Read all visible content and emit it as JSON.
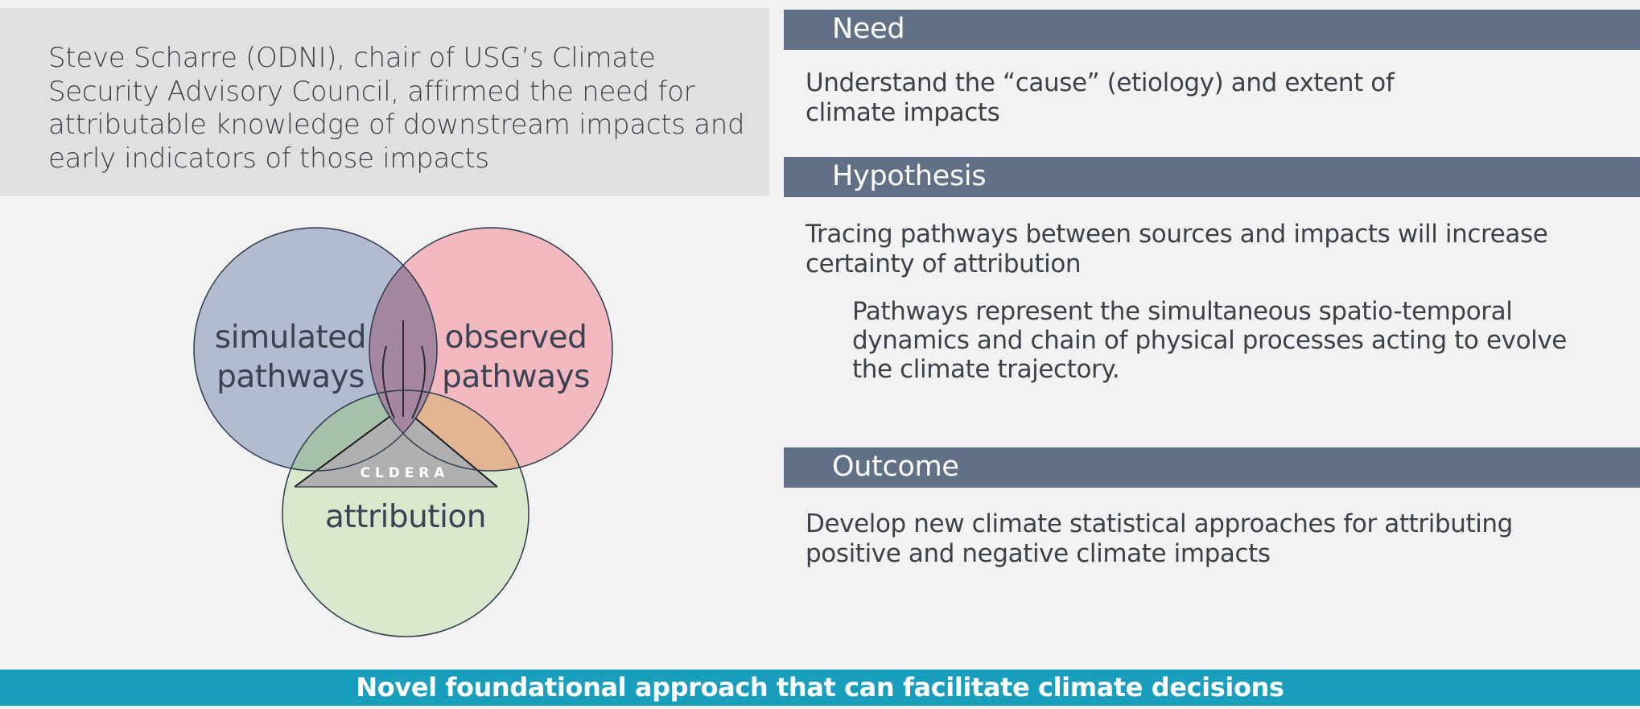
{
  "quote": {
    "text": "Steve Scharre (ODNI), chair of USG’s Climate Security Advisory Council, affirmed the need for attributable knowledge of downstream impacts and early indicators of those impacts"
  },
  "venn": {
    "sets": [
      {
        "id": "simulated",
        "label_line1": "simulated",
        "label_line2": "pathways",
        "color": "#b3bccf"
      },
      {
        "id": "observed",
        "label_line1": "observed",
        "label_line2": "pathways",
        "color": "#f3b9c0"
      },
      {
        "id": "attribution",
        "label": "attribution",
        "color": "#d9e7cc"
      }
    ],
    "center_logo": "CLDERA",
    "center_logo_display": "C L D E R A",
    "overlap_color": "#a5879f",
    "logo_color": "#b0b0b0",
    "outline_color": "#2e3a4e"
  },
  "sections": {
    "need": {
      "title": "Need",
      "line1": "Understand the “cause” (etiology) and extent of",
      "line2": "climate impacts"
    },
    "hypothesis": {
      "title": "Hypothesis",
      "line1": "Tracing pathways between sources and impacts will increase",
      "line2": "certainty of attribution",
      "detail_line1": "Pathways represent the simultaneous spatio-temporal",
      "detail_line2": "dynamics and chain of physical processes acting to evolve",
      "detail_line3": "the climate trajectory."
    },
    "outcome": {
      "title": "Outcome",
      "line1": "Develop new climate statistical approaches for attributing",
      "line2": "positive and negative climate impacts"
    }
  },
  "footer": {
    "text": "Novel foundational approach that can facilitate climate decisions"
  },
  "colors": {
    "section_bar": "#627087",
    "footer_bar": "#199fbd",
    "quote_background": "#e0e0e0",
    "page_background": "#f2f2f2"
  }
}
